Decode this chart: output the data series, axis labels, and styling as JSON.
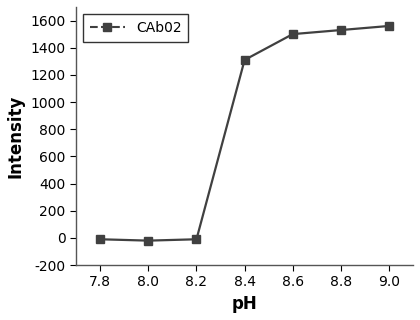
{
  "x": [
    7.8,
    8.0,
    8.2,
    8.4,
    8.6,
    8.8,
    9.0
  ],
  "y": [
    -10,
    -20,
    -10,
    1310,
    1500,
    1530,
    1560
  ],
  "line_color": "#404040",
  "marker": "s",
  "marker_color": "#404040",
  "marker_size": 6,
  "line_width": 1.6,
  "xlabel": "pH",
  "ylabel": "Intensity",
  "xlim": [
    7.7,
    9.1
  ],
  "ylim": [
    -200,
    1700
  ],
  "xticks": [
    7.8,
    8.0,
    8.2,
    8.4,
    8.6,
    8.8,
    9.0
  ],
  "yticks": [
    -200,
    0,
    200,
    400,
    600,
    800,
    1000,
    1200,
    1400,
    1600
  ],
  "legend_label": "CAb02",
  "legend_loc": "upper left",
  "xlabel_fontsize": 12,
  "ylabel_fontsize": 12,
  "tick_fontsize": 10,
  "legend_fontsize": 10,
  "background_color": "#ffffff",
  "line_style": "-"
}
